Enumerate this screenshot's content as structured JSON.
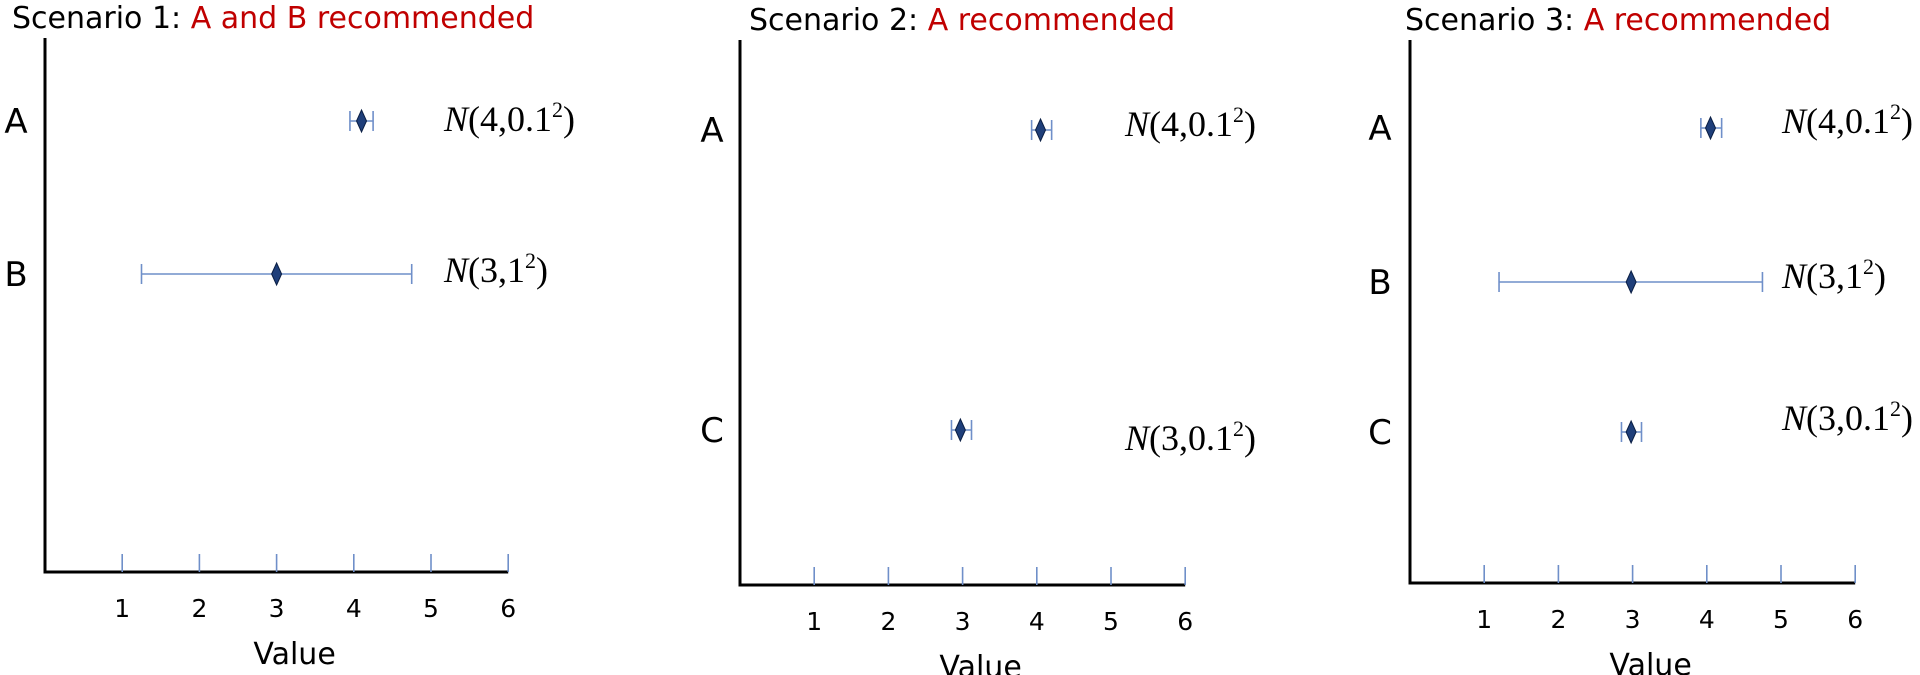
{
  "chart_data": [
    {
      "type": "scatter",
      "title_prefix": "Scenario 1: ",
      "title_highlight": "A and B recommended",
      "xlabel": "Value",
      "xlim": [
        0,
        6
      ],
      "xticks": [
        1,
        2,
        3,
        4,
        5,
        6
      ],
      "grid": false,
      "colors": {
        "marker": "#1f3f7a",
        "errorbar": "#6f8fc9",
        "highlight": "#c00000"
      },
      "series": [
        {
          "category": "A",
          "value": 4.1,
          "err_low": 3.95,
          "err_high": 4.25,
          "label_main": "N(4,0.1",
          "label_sup": "2",
          "label_close": ")"
        },
        {
          "category": "B",
          "value": 3.0,
          "err_low": 1.25,
          "err_high": 4.75,
          "label_main": "N(3,1",
          "label_sup": "2",
          "label_close": ")"
        }
      ]
    },
    {
      "type": "scatter",
      "title_prefix": "Scenario 2: ",
      "title_highlight": "A recommended",
      "xlabel": "Value",
      "xlim": [
        0,
        6
      ],
      "xticks": [
        1,
        2,
        3,
        4,
        5,
        6
      ],
      "grid": false,
      "colors": {
        "marker": "#1f3f7a",
        "errorbar": "#6f8fc9",
        "highlight": "#c00000"
      },
      "series": [
        {
          "category": "A",
          "value": 4.05,
          "err_low": 3.93,
          "err_high": 4.2,
          "label_main": "N(4,0.1",
          "label_sup": "2",
          "label_close": ")"
        },
        {
          "category": "C",
          "value": 2.97,
          "err_low": 2.85,
          "err_high": 3.12,
          "label_main": "N(3,0.1",
          "label_sup": "2",
          "label_close": ")"
        }
      ]
    },
    {
      "type": "scatter",
      "title_prefix": "Scenario 3: ",
      "title_highlight": "A recommended",
      "xlabel": "Value",
      "xlim": [
        0,
        6
      ],
      "xticks": [
        1,
        2,
        3,
        4,
        5,
        6
      ],
      "grid": false,
      "colors": {
        "marker": "#1f3f7a",
        "errorbar": "#6f8fc9",
        "highlight": "#c00000"
      },
      "series": [
        {
          "category": "A",
          "value": 4.05,
          "err_low": 3.92,
          "err_high": 4.2,
          "label_main": "N(4,0.1",
          "label_sup": "2",
          "label_close": ")"
        },
        {
          "category": "B",
          "value": 2.98,
          "err_low": 1.2,
          "err_high": 4.75,
          "label_main": "N(3,1",
          "label_sup": "2",
          "label_close": ")"
        },
        {
          "category": "C",
          "value": 2.98,
          "err_low": 2.85,
          "err_high": 3.12,
          "label_main": "N(3,0.1",
          "label_sup": "2",
          "label_close": ")"
        }
      ]
    }
  ]
}
